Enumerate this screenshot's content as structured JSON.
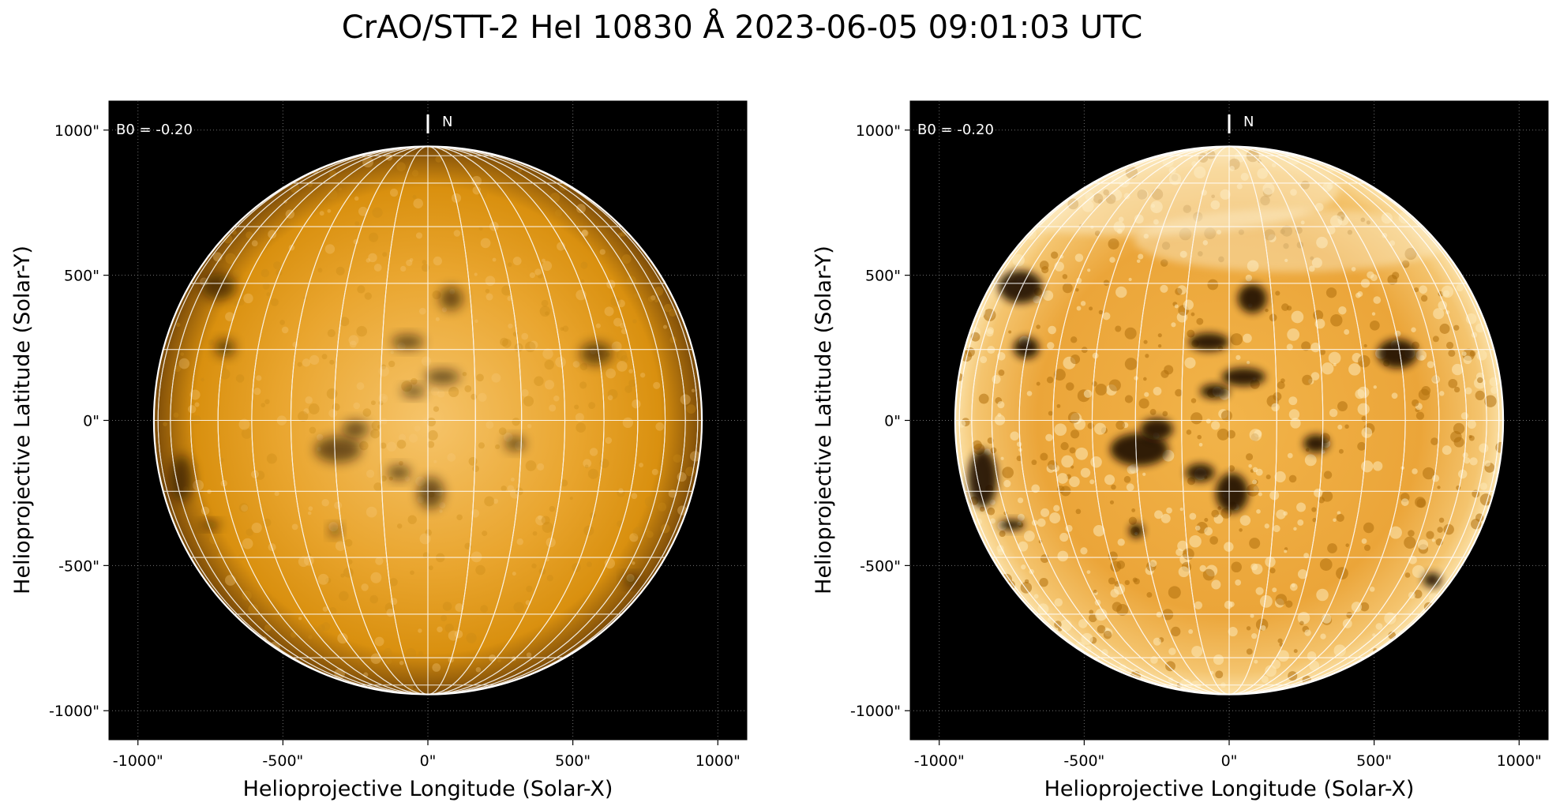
{
  "title": "CrAO/STT-2 HeI 10830 Å 2023-06-05 09:01:03 UTC",
  "colors": {
    "background": "#000000",
    "disk_bright": "#f6c46a",
    "disk_mid": "#d9900f",
    "disk_limb": "#7a4a08",
    "grid": "#ffffff",
    "dark_features": "#1a0e02"
  },
  "panels": [
    {
      "id": "left",
      "contrast": "normal",
      "b0_label": "B0 = -0.20",
      "north_label": "N",
      "x_axis_label": "Helioprojective Longitude (Solar-X)",
      "y_axis_label": "Helioprojective Latitude (Solar-Y)",
      "x_ticks": [
        "-1000\"",
        "-500\"",
        "0\"",
        "500\"",
        "1000\""
      ],
      "y_ticks": [
        "1000\"",
        "500\"",
        "0\"",
        "-500\"",
        "-1000\""
      ]
    },
    {
      "id": "right",
      "contrast": "enhanced",
      "b0_label": "B0 = -0.20",
      "north_label": "N",
      "x_axis_label": "Helioprojective Longitude (Solar-X)",
      "y_axis_label": "Helioprojective Latitude (Solar-Y)",
      "x_ticks": [
        "-1000\"",
        "-500\"",
        "0\"",
        "500\"",
        "1000\""
      ],
      "y_ticks": [
        "1000\"",
        "500\"",
        "0\"",
        "-500\"",
        "-1000\""
      ]
    }
  ],
  "axes": {
    "x_range_arcsec": [
      -1100,
      1100
    ],
    "y_range_arcsec": [
      -1100,
      1100
    ],
    "tick_values_arcsec": [
      -1000,
      -500,
      0,
      500,
      1000
    ],
    "solar_radius_arcsec": 945
  },
  "features": [
    {
      "x": -310,
      "y": -100,
      "rx": 80,
      "ry": 45
    },
    {
      "x": -250,
      "y": -30,
      "rx": 45,
      "ry": 30
    },
    {
      "x": 10,
      "y": -250,
      "rx": 45,
      "ry": 55
    },
    {
      "x": -100,
      "y": -180,
      "rx": 40,
      "ry": 25
    },
    {
      "x": -850,
      "y": -200,
      "rx": 40,
      "ry": 80
    },
    {
      "x": -720,
      "y": 460,
      "rx": 60,
      "ry": 45
    },
    {
      "x": -700,
      "y": 250,
      "rx": 35,
      "ry": 30
    },
    {
      "x": 80,
      "y": 420,
      "rx": 40,
      "ry": 40
    },
    {
      "x": -70,
      "y": 270,
      "rx": 55,
      "ry": 25
    },
    {
      "x": 50,
      "y": 150,
      "rx": 60,
      "ry": 25
    },
    {
      "x": 580,
      "y": 230,
      "rx": 55,
      "ry": 40
    },
    {
      "x": -50,
      "y": 100,
      "rx": 40,
      "ry": 20
    },
    {
      "x": -750,
      "y": -360,
      "rx": 35,
      "ry": 15
    },
    {
      "x": -320,
      "y": -380,
      "rx": 20,
      "ry": 20
    },
    {
      "x": 700,
      "y": -550,
      "rx": 25,
      "ry": 20
    },
    {
      "x": 300,
      "y": -80,
      "rx": 35,
      "ry": 25
    }
  ]
}
